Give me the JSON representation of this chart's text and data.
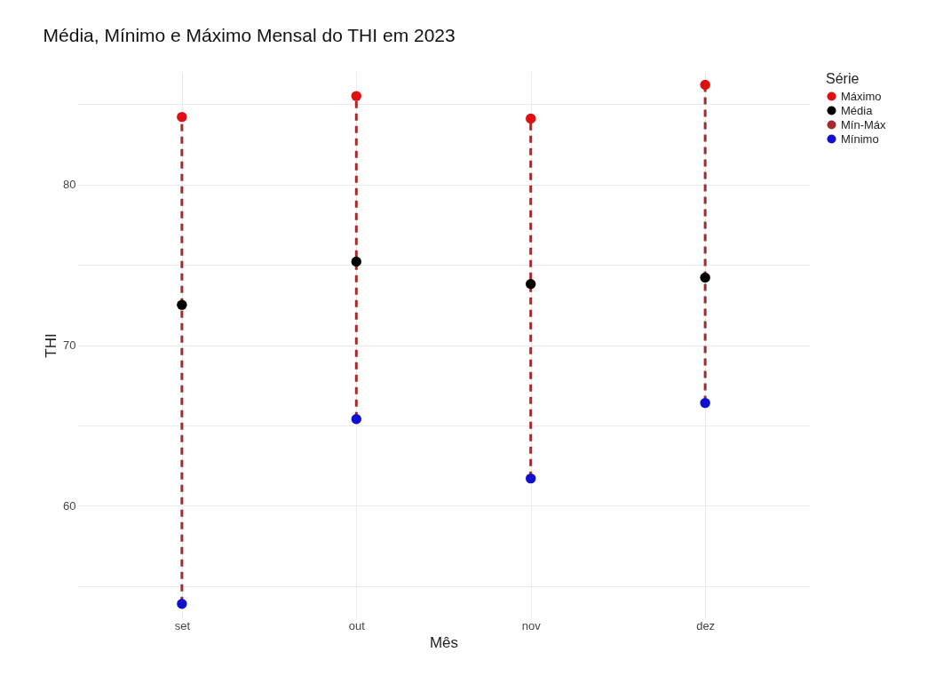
{
  "chart_data": {
    "type": "scatter",
    "title": "Média, Mínimo e Máximo Mensal do THI em 2023",
    "xlabel": "Mês",
    "ylabel": "THI",
    "legend_title": "Série",
    "categories": [
      "set",
      "out",
      "nov",
      "dez"
    ],
    "series": [
      {
        "name": "Máximo",
        "color": "#e01010",
        "values": [
          84.2,
          85.5,
          84.1,
          86.2
        ]
      },
      {
        "name": "Média",
        "color": "#000000",
        "values": [
          72.5,
          75.2,
          73.8,
          74.2
        ]
      },
      {
        "name": "Mín-Máx",
        "color": "#a52a2a",
        "type": "line",
        "line_style": "dashed",
        "marker": "none",
        "x": [
          "set",
          "set",
          "set",
          "out",
          "out",
          "out",
          "nov",
          "nov",
          "nov",
          "dez",
          "dez"
        ],
        "values": [
          53.9,
          84.2,
          null,
          65.4,
          85.5,
          null,
          61.7,
          84.1,
          null,
          66.4,
          86.2
        ]
      },
      {
        "name": "Mínimo",
        "color": "#1010d0",
        "values": [
          53.9,
          65.4,
          61.7,
          66.4
        ]
      }
    ],
    "ylim": [
      53,
      87
    ],
    "yticks": [
      {
        "value": 55,
        "label": null
      },
      60,
      {
        "value": 65,
        "label": null
      },
      70,
      {
        "value": 75,
        "label": null
      },
      80,
      {
        "value": 85,
        "label": null
      }
    ],
    "grid": true,
    "legend": "right",
    "marker": "circle"
  }
}
